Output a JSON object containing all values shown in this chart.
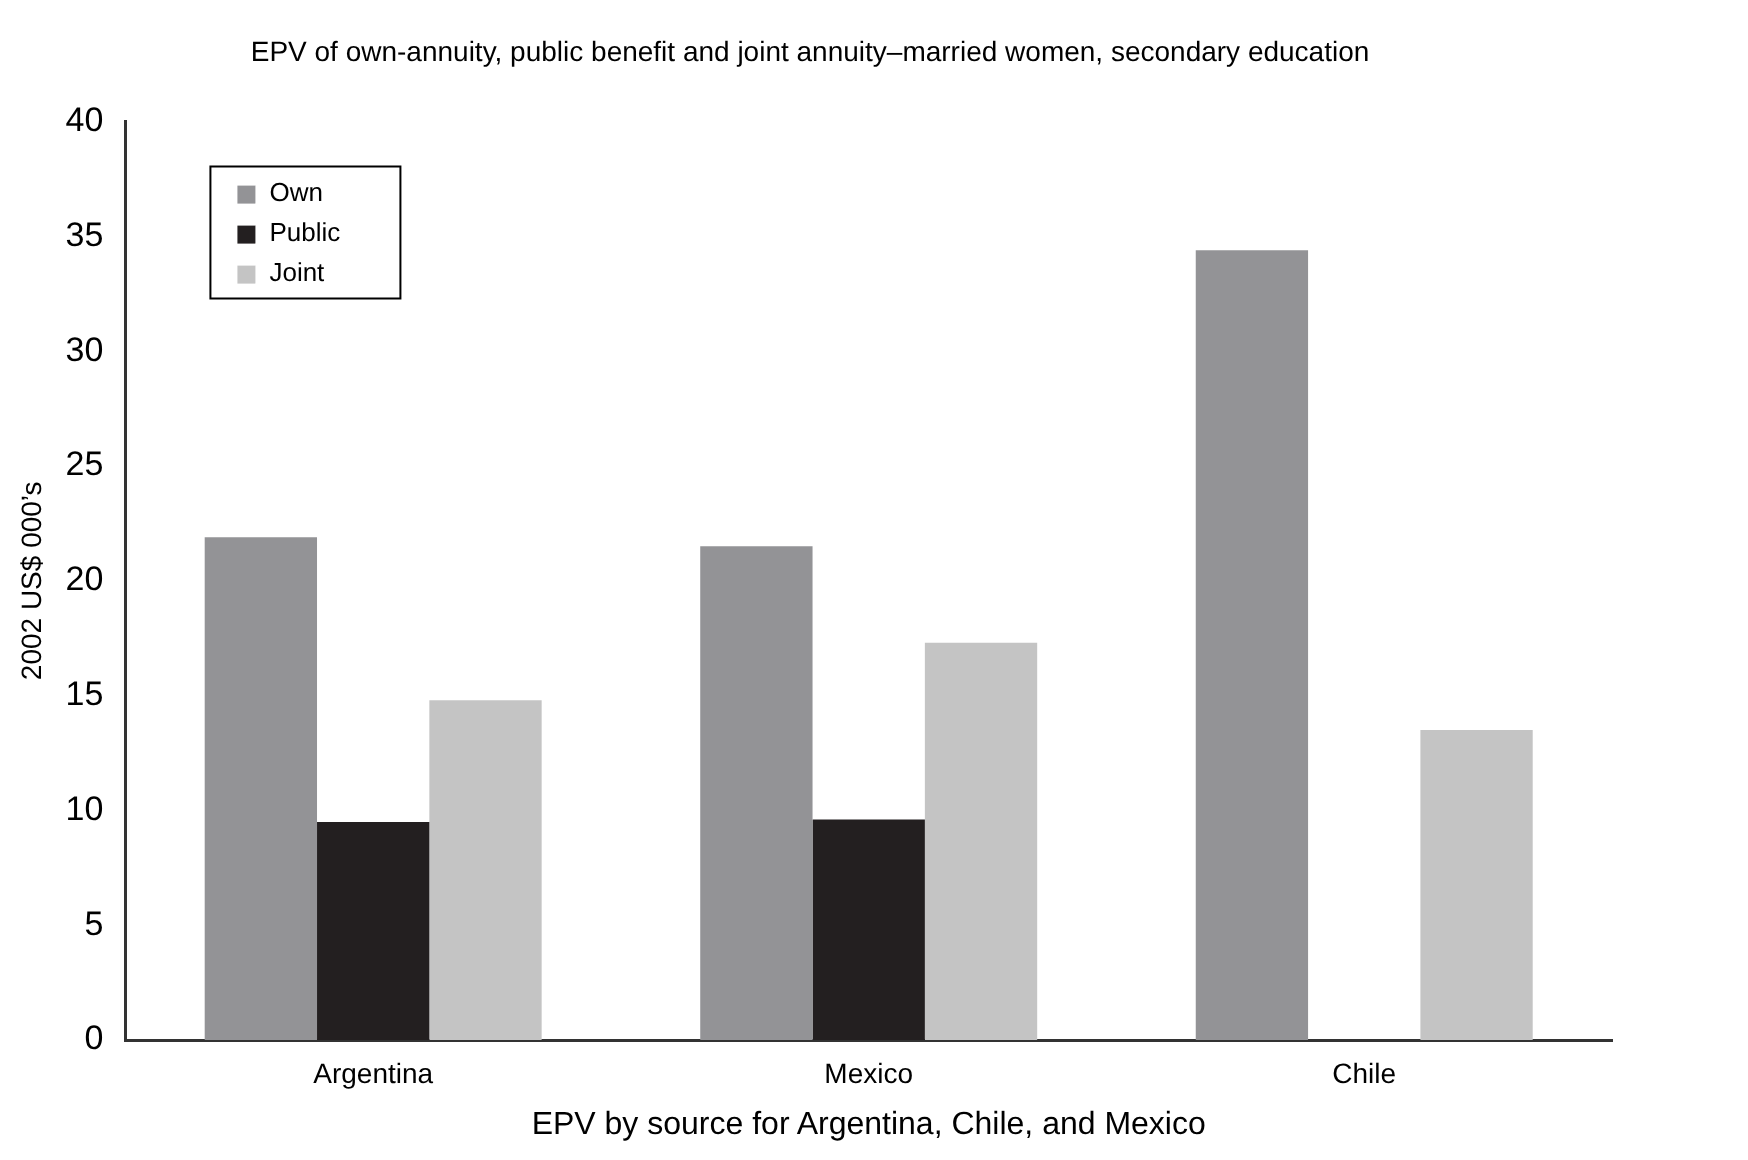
{
  "chart_data": {
    "type": "bar",
    "title": "EPV of own-annuity, public benefit and joint annuity–married women, secondary education",
    "xlabel": "EPV by source for Argentina, Chile, and Mexico",
    "ylabel": "2002 US$ 000’s",
    "categories": [
      "Argentina",
      "Mexico",
      "Chile"
    ],
    "series": [
      {
        "name": "Own",
        "color": "#939396",
        "values": [
          21.9,
          21.5,
          34.4
        ]
      },
      {
        "name": "Public",
        "color": "#231f20",
        "values": [
          9.5,
          9.6,
          null
        ]
      },
      {
        "name": "Joint",
        "color": "#c4c4c4",
        "values": [
          14.8,
          17.3,
          13.5
        ]
      }
    ],
    "ylim": [
      0,
      40
    ],
    "yticks": [
      0,
      5,
      10,
      15,
      20,
      25,
      30,
      35,
      40
    ],
    "grid": false,
    "legend": "top left"
  }
}
